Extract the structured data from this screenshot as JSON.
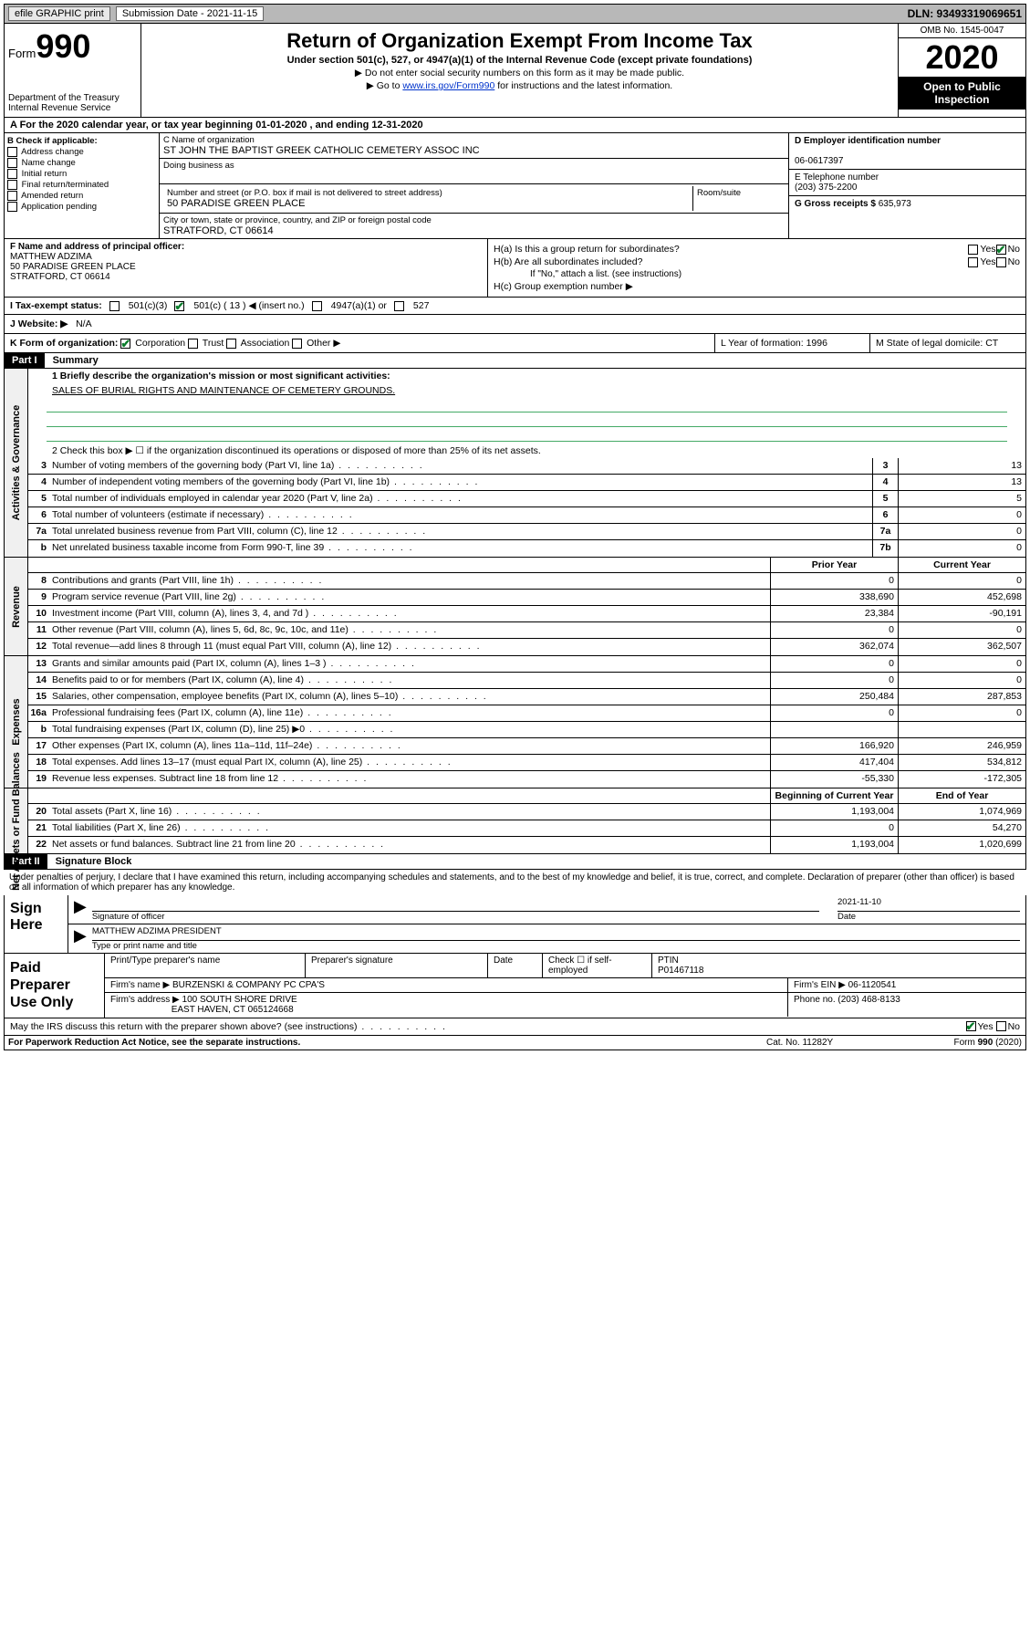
{
  "topbar": {
    "efile": "efile GRAPHIC print",
    "sub_label": "Submission Date - 2021-11-15",
    "dln": "DLN: 93493319069651"
  },
  "header": {
    "form_label": "Form",
    "form_num": "990",
    "dept": "Department of the Treasury\nInternal Revenue Service",
    "title": "Return of Organization Exempt From Income Tax",
    "subtitle": "Under section 501(c), 527, or 4947(a)(1) of the Internal Revenue Code (except private foundations)",
    "note1": "▶ Do not enter social security numbers on this form as it may be made public.",
    "note2_pre": "▶ Go to ",
    "note2_link": "www.irs.gov/Form990",
    "note2_post": " for instructions and the latest information.",
    "omb": "OMB No. 1545-0047",
    "year": "2020",
    "inspection": "Open to Public Inspection"
  },
  "line_a": "A For the 2020 calendar year, or tax year beginning 01-01-2020   , and ending 12-31-2020",
  "section_b": {
    "hdr": "B Check if applicable:",
    "opts": [
      "Address change",
      "Name change",
      "Initial return",
      "Final return/terminated",
      "Amended return",
      "Application pending"
    ]
  },
  "section_c": {
    "name_lbl": "C Name of organization",
    "name": "ST JOHN THE BAPTIST GREEK CATHOLIC CEMETERY ASSOC INC",
    "dba_lbl": "Doing business as",
    "dba": "",
    "street_lbl": "Number and street (or P.O. box if mail is not delivered to street address)",
    "room_lbl": "Room/suite",
    "street": "50 PARADISE GREEN PLACE",
    "city_lbl": "City or town, state or province, country, and ZIP or foreign postal code",
    "city": "STRATFORD, CT  06614"
  },
  "section_d": {
    "lbl": "D Employer identification number",
    "val": "06-0617397"
  },
  "section_e": {
    "lbl": "E Telephone number",
    "val": "(203) 375-2200"
  },
  "section_g": {
    "lbl": "G Gross receipts $",
    "val": "635,973"
  },
  "section_f": {
    "lbl": "F Name and address of principal officer:",
    "name": "MATTHEW ADZIMA",
    "addr1": "50 PARADISE GREEN PLACE",
    "addr2": "STRATFORD, CT  06614"
  },
  "section_h": {
    "ha": "H(a)  Is this a group return for subordinates?",
    "hb": "H(b)  Are all subordinates included?",
    "hb_note": "If \"No,\" attach a list. (see instructions)",
    "hc": "H(c)  Group exemption number ▶"
  },
  "tax_status": {
    "lbl": "I   Tax-exempt status:",
    "c3": "501(c)(3)",
    "c_other": "501(c) ( 13 ) ◀ (insert no.)",
    "a1": "4947(a)(1) or",
    "s527": "527"
  },
  "website": {
    "lbl": "J   Website: ▶",
    "val": "N/A"
  },
  "row_k": {
    "k": "K Form of organization:",
    "opts": [
      "Corporation",
      "Trust",
      "Association",
      "Other ▶"
    ],
    "l": "L Year of formation: 1996",
    "m": "M State of legal domicile: CT"
  },
  "part1": {
    "hdr": "Part I",
    "title": "Summary",
    "vtab1": "Activities & Governance",
    "vtab2": "Revenue",
    "vtab3": "Expenses",
    "vtab4": "Net Assets or Fund Balances",
    "line1": "1   Briefly describe the organization's mission or most significant activities:",
    "mission": "SALES OF BURIAL RIGHTS AND MAINTENANCE OF CEMETERY GROUNDS.",
    "line2": "2   Check this box ▶ ☐  if the organization discontinued its operations or disposed of more than 25% of its net assets.",
    "rows_gov": [
      {
        "n": "3",
        "d": "Number of voting members of the governing body (Part VI, line 1a)",
        "box": "3",
        "v": "13"
      },
      {
        "n": "4",
        "d": "Number of independent voting members of the governing body (Part VI, line 1b)",
        "box": "4",
        "v": "13"
      },
      {
        "n": "5",
        "d": "Total number of individuals employed in calendar year 2020 (Part V, line 2a)",
        "box": "5",
        "v": "5"
      },
      {
        "n": "6",
        "d": "Total number of volunteers (estimate if necessary)",
        "box": "6",
        "v": "0"
      },
      {
        "n": "7a",
        "d": "Total unrelated business revenue from Part VIII, column (C), line 12",
        "box": "7a",
        "v": "0"
      },
      {
        "n": "b",
        "d": "Net unrelated business taxable income from Form 990-T, line 39",
        "box": "7b",
        "v": "0"
      }
    ],
    "hdr_prior": "Prior Year",
    "hdr_current": "Current Year",
    "rows_rev": [
      {
        "n": "8",
        "d": "Contributions and grants (Part VIII, line 1h)",
        "p": "0",
        "c": "0"
      },
      {
        "n": "9",
        "d": "Program service revenue (Part VIII, line 2g)",
        "p": "338,690",
        "c": "452,698"
      },
      {
        "n": "10",
        "d": "Investment income (Part VIII, column (A), lines 3, 4, and 7d )",
        "p": "23,384",
        "c": "-90,191"
      },
      {
        "n": "11",
        "d": "Other revenue (Part VIII, column (A), lines 5, 6d, 8c, 9c, 10c, and 11e)",
        "p": "0",
        "c": "0"
      },
      {
        "n": "12",
        "d": "Total revenue—add lines 8 through 11 (must equal Part VIII, column (A), line 12)",
        "p": "362,074",
        "c": "362,507"
      }
    ],
    "rows_exp": [
      {
        "n": "13",
        "d": "Grants and similar amounts paid (Part IX, column (A), lines 1–3 )",
        "p": "0",
        "c": "0"
      },
      {
        "n": "14",
        "d": "Benefits paid to or for members (Part IX, column (A), line 4)",
        "p": "0",
        "c": "0"
      },
      {
        "n": "15",
        "d": "Salaries, other compensation, employee benefits (Part IX, column (A), lines 5–10)",
        "p": "250,484",
        "c": "287,853"
      },
      {
        "n": "16a",
        "d": "Professional fundraising fees (Part IX, column (A), line 11e)",
        "p": "0",
        "c": "0"
      },
      {
        "n": "b",
        "d": "Total fundraising expenses (Part IX, column (D), line 25) ▶0",
        "p": "",
        "c": ""
      },
      {
        "n": "17",
        "d": "Other expenses (Part IX, column (A), lines 11a–11d, 11f–24e)",
        "p": "166,920",
        "c": "246,959"
      },
      {
        "n": "18",
        "d": "Total expenses. Add lines 13–17 (must equal Part IX, column (A), line 25)",
        "p": "417,404",
        "c": "534,812"
      },
      {
        "n": "19",
        "d": "Revenue less expenses. Subtract line 18 from line 12",
        "p": "-55,330",
        "c": "-172,305"
      }
    ],
    "hdr_begin": "Beginning of Current Year",
    "hdr_end": "End of Year",
    "rows_net": [
      {
        "n": "20",
        "d": "Total assets (Part X, line 16)",
        "p": "1,193,004",
        "c": "1,074,969"
      },
      {
        "n": "21",
        "d": "Total liabilities (Part X, line 26)",
        "p": "0",
        "c": "54,270"
      },
      {
        "n": "22",
        "d": "Net assets or fund balances. Subtract line 21 from line 20",
        "p": "1,193,004",
        "c": "1,020,699"
      }
    ]
  },
  "part2": {
    "hdr": "Part II",
    "title": "Signature Block",
    "decl": "Under penalties of perjury, I declare that I have examined this return, including accompanying schedules and statements, and to the best of my knowledge and belief, it is true, correct, and complete. Declaration of preparer (other than officer) is based on all information of which preparer has any knowledge.",
    "sign_here": "Sign Here",
    "sig_officer": "Signature of officer",
    "date": "2021-11-10",
    "date_lbl": "Date",
    "name_title": "MATTHEW ADZIMA PRESIDENT",
    "name_title_lbl": "Type or print name and title",
    "paid": "Paid Preparer Use Only",
    "prep_name_lbl": "Print/Type preparer's name",
    "prep_sig_lbl": "Preparer's signature",
    "prep_date_lbl": "Date",
    "self_emp": "Check ☐ if self-employed",
    "ptin_lbl": "PTIN",
    "ptin": "P01467118",
    "firm_name_lbl": "Firm's name      ▶",
    "firm_name": "BURZENSKI & COMPANY PC CPA'S",
    "firm_ein_lbl": "Firm's EIN ▶",
    "firm_ein": "06-1120541",
    "firm_addr_lbl": "Firm's address ▶",
    "firm_addr1": "100 SOUTH SHORE DRIVE",
    "firm_addr2": "EAST HAVEN, CT  065124668",
    "phone_lbl": "Phone no.",
    "phone": "(203) 468-8133",
    "discuss": "May the IRS discuss this return with the preparer shown above? (see instructions)"
  },
  "footer": {
    "paperwork": "For Paperwork Reduction Act Notice, see the separate instructions.",
    "cat": "Cat. No. 11282Y",
    "form": "Form 990 (2020)"
  }
}
